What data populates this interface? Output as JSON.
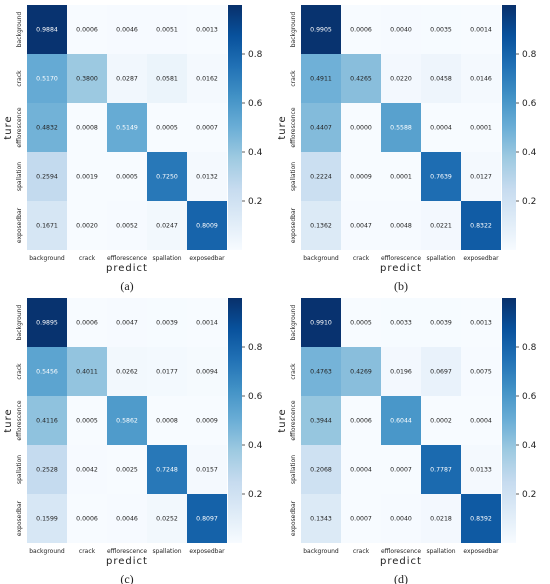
{
  "chart_data": [
    {
      "type": "heatmap",
      "caption": "(a)",
      "xlabel": "predict",
      "ylabel": "ture",
      "categories": [
        "background",
        "crack",
        "efflorescence",
        "spallation",
        "exposedbar"
      ],
      "values": [
        [
          0.9884,
          0.0006,
          0.0046,
          0.0051,
          0.0013
        ],
        [
          0.517,
          0.38,
          0.0287,
          0.0581,
          0.0162
        ],
        [
          0.4832,
          0.0008,
          0.5149,
          0.0005,
          0.0007
        ],
        [
          0.2594,
          0.0019,
          0.0005,
          0.725,
          0.0132
        ],
        [
          0.1671,
          0.002,
          0.0052,
          0.0247,
          0.8009
        ]
      ],
      "value_labels": [
        [
          "0.9884",
          "0.0006",
          "0.0046",
          "0.0051",
          "0.0013"
        ],
        [
          "0.5170",
          "0.3800",
          "0.0287",
          "0.0581",
          "0.0162"
        ],
        [
          "0.4832",
          "0.0008",
          "0.5149",
          "0.0005",
          "0.0007"
        ],
        [
          "0.2594",
          "0.0019",
          "0.0005",
          "0.7250",
          "0.0132"
        ],
        [
          "0.1671",
          "0.0020",
          "0.0052",
          "0.0247",
          "0.8009"
        ]
      ],
      "colorbar": {
        "range": [
          0,
          1
        ],
        "ticks": [
          "0.2",
          "0.4",
          "0.6",
          "0.8"
        ]
      }
    },
    {
      "type": "heatmap",
      "caption": "(b)",
      "xlabel": "predict",
      "ylabel": "ture",
      "categories": [
        "background",
        "crack",
        "efflorescence",
        "spallation",
        "exposedbar"
      ],
      "values": [
        [
          0.9905,
          0.0006,
          0.004,
          0.0035,
          0.0014
        ],
        [
          0.4911,
          0.4265,
          0.022,
          0.0458,
          0.0146
        ],
        [
          0.4407,
          0.0,
          0.5588,
          0.0004,
          0.0001
        ],
        [
          0.2224,
          0.0009,
          0.0001,
          0.7639,
          0.0127
        ],
        [
          0.1362,
          0.0047,
          0.0048,
          0.0221,
          0.8322
        ]
      ],
      "value_labels": [
        [
          "0.9905",
          "0.0006",
          "0.0040",
          "0.0035",
          "0.0014"
        ],
        [
          "0.4911",
          "0.4265",
          "0.0220",
          "0.0458",
          "0.0146"
        ],
        [
          "0.4407",
          "0.0000",
          "0.5588",
          "0.0004",
          "0.0001"
        ],
        [
          "0.2224",
          "0.0009",
          "0.0001",
          "0.7639",
          "0.0127"
        ],
        [
          "0.1362",
          "0.0047",
          "0.0048",
          "0.0221",
          "0.8322"
        ]
      ],
      "colorbar": {
        "range": [
          0,
          1
        ],
        "ticks": [
          "0.2",
          "0.4",
          "0.6",
          "0.8"
        ]
      }
    },
    {
      "type": "heatmap",
      "caption": "(c)",
      "xlabel": "predict",
      "ylabel": "ture",
      "categories": [
        "background",
        "crack",
        "efflorescence",
        "spallation",
        "exposedbar"
      ],
      "values": [
        [
          0.9895,
          0.0006,
          0.0047,
          0.0039,
          0.0014
        ],
        [
          0.5456,
          0.4011,
          0.0262,
          0.0177,
          0.0094
        ],
        [
          0.4116,
          0.0005,
          0.5862,
          0.0008,
          0.0009
        ],
        [
          0.2528,
          0.0042,
          0.0025,
          0.7248,
          0.0157
        ],
        [
          0.1599,
          0.0006,
          0.0046,
          0.0252,
          0.8097
        ]
      ],
      "value_labels": [
        [
          "0.9895",
          "0.0006",
          "0.0047",
          "0.0039",
          "0.0014"
        ],
        [
          "0.5456",
          "0.4011",
          "0.0262",
          "0.0177",
          "0.0094"
        ],
        [
          "0.4116",
          "0.0005",
          "0.5862",
          "0.0008",
          "0.0009"
        ],
        [
          "0.2528",
          "0.0042",
          "0.0025",
          "0.7248",
          "0.0157"
        ],
        [
          "0.1599",
          "0.0006",
          "0.0046",
          "0.0252",
          "0.8097"
        ]
      ],
      "colorbar": {
        "range": [
          0,
          1
        ],
        "ticks": [
          "0.2",
          "0.4",
          "0.6",
          "0.8"
        ]
      }
    },
    {
      "type": "heatmap",
      "caption": "(d)",
      "xlabel": "predict",
      "ylabel": "ture",
      "categories": [
        "background",
        "crack",
        "efflorescence",
        "spallation",
        "exposedbar"
      ],
      "values": [
        [
          0.991,
          0.0005,
          0.0033,
          0.0039,
          0.0013
        ],
        [
          0.4763,
          0.4269,
          0.0196,
          0.0697,
          0.0075
        ],
        [
          0.3944,
          0.0006,
          0.6044,
          0.0002,
          0.0004
        ],
        [
          0.2068,
          0.0004,
          0.0007,
          0.7787,
          0.0133
        ],
        [
          0.1343,
          0.0007,
          0.004,
          0.0218,
          0.8392
        ]
      ],
      "value_labels": [
        [
          "0.9910",
          "0.0005",
          "0.0033",
          "0.0039",
          "0.0013"
        ],
        [
          "0.4763",
          "0.4269",
          "0.0196",
          "0.0697",
          "0.0075"
        ],
        [
          "0.3944",
          "0.0006",
          "0.6044",
          "0.0002",
          "0.0004"
        ],
        [
          "0.2068",
          "0.0004",
          "0.0007",
          "0.7787",
          "0.0133"
        ],
        [
          "0.1343",
          "0.0007",
          "0.0040",
          "0.0218",
          "0.8392"
        ]
      ],
      "colorbar": {
        "range": [
          0,
          1
        ],
        "ticks": [
          "0.2",
          "0.4",
          "0.6",
          "0.8"
        ]
      }
    }
  ]
}
